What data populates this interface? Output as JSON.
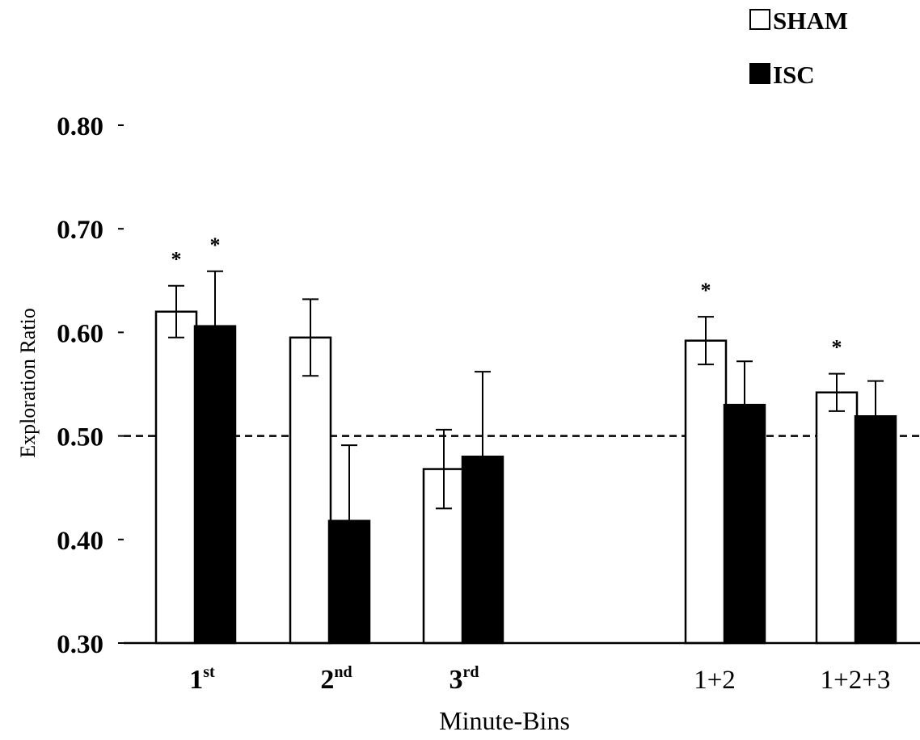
{
  "chart_data": {
    "type": "bar",
    "title": "",
    "xlabel": "Minute-Bins",
    "ylabel": "Exploration Ratio",
    "ylim": [
      0.3,
      0.8
    ],
    "yticks": [
      "0.30",
      "0.40",
      "0.50",
      "0.60",
      "0.70",
      "0.80"
    ],
    "categories": [
      {
        "main": "1",
        "sup": "st"
      },
      {
        "main": "2",
        "sup": "nd"
      },
      {
        "main": "3",
        "sup": "rd"
      },
      {
        "main": "1+2",
        "sup": ""
      },
      {
        "main": "1+2+3",
        "sup": ""
      }
    ],
    "series": [
      {
        "name": "SHAM",
        "color": "#ffffff",
        "values": [
          0.62,
          0.595,
          0.468,
          0.592,
          0.542
        ],
        "error": [
          0.025,
          0.037,
          0.038,
          0.023,
          0.018
        ],
        "significant": [
          true,
          false,
          false,
          true,
          true
        ]
      },
      {
        "name": "ISC",
        "color": "#000000",
        "values": [
          0.606,
          0.418,
          0.48,
          0.53,
          0.519
        ],
        "error": [
          0.053,
          0.073,
          0.082,
          0.042,
          0.034
        ],
        "significant": [
          true,
          false,
          false,
          false,
          false
        ]
      }
    ],
    "reference_line": 0.5,
    "significance_marker": "*",
    "legend_position": "top-right"
  }
}
